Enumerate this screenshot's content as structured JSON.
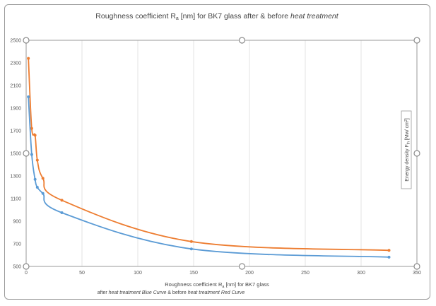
{
  "chart_data": {
    "type": "line",
    "title": {
      "prefix": "Roughness coefficient R",
      "sub": "a",
      "middle": " [nm] for BK7 glass after & before ",
      "emph": "heat treatment"
    },
    "xlabel": {
      "prefix": "Roughness coefficient R",
      "sub": "a",
      "suffix": " [nm] for BK7  glass"
    },
    "xlabel2": {
      "p1": "after ",
      "e1": "heat treatment Blue Curve",
      "p2": "  & before ",
      "e2": "heat treatment Red Curve"
    },
    "ylabel": {
      "prefix": "Energy density F",
      "sub": "th",
      "middle": " [Mw/ cm",
      "sup": "2",
      "suffix": "]"
    },
    "xlim": [
      0,
      350
    ],
    "ylim": [
      500,
      2500
    ],
    "x_ticks": [
      0,
      50,
      100,
      150,
      200,
      250,
      300,
      350
    ],
    "y_ticks": [
      500,
      700,
      900,
      1100,
      1300,
      1500,
      1700,
      1900,
      2100,
      2300,
      2500
    ],
    "grid": "vertical",
    "series": [
      {
        "color": "#ed7d31",
        "points": [
          [
            2,
            2340
          ],
          [
            5,
            1720
          ],
          [
            8,
            1660
          ],
          [
            10,
            1440
          ],
          [
            15,
            1280
          ],
          [
            32,
            1085
          ],
          [
            148,
            720
          ],
          [
            325,
            642
          ]
        ]
      },
      {
        "color": "#5b9bd5",
        "points": [
          [
            2,
            2000
          ],
          [
            5,
            1490
          ],
          [
            8,
            1270
          ],
          [
            10,
            1200
          ],
          [
            15,
            1145
          ],
          [
            32,
            975
          ],
          [
            148,
            655
          ],
          [
            325,
            582
          ]
        ]
      }
    ]
  }
}
